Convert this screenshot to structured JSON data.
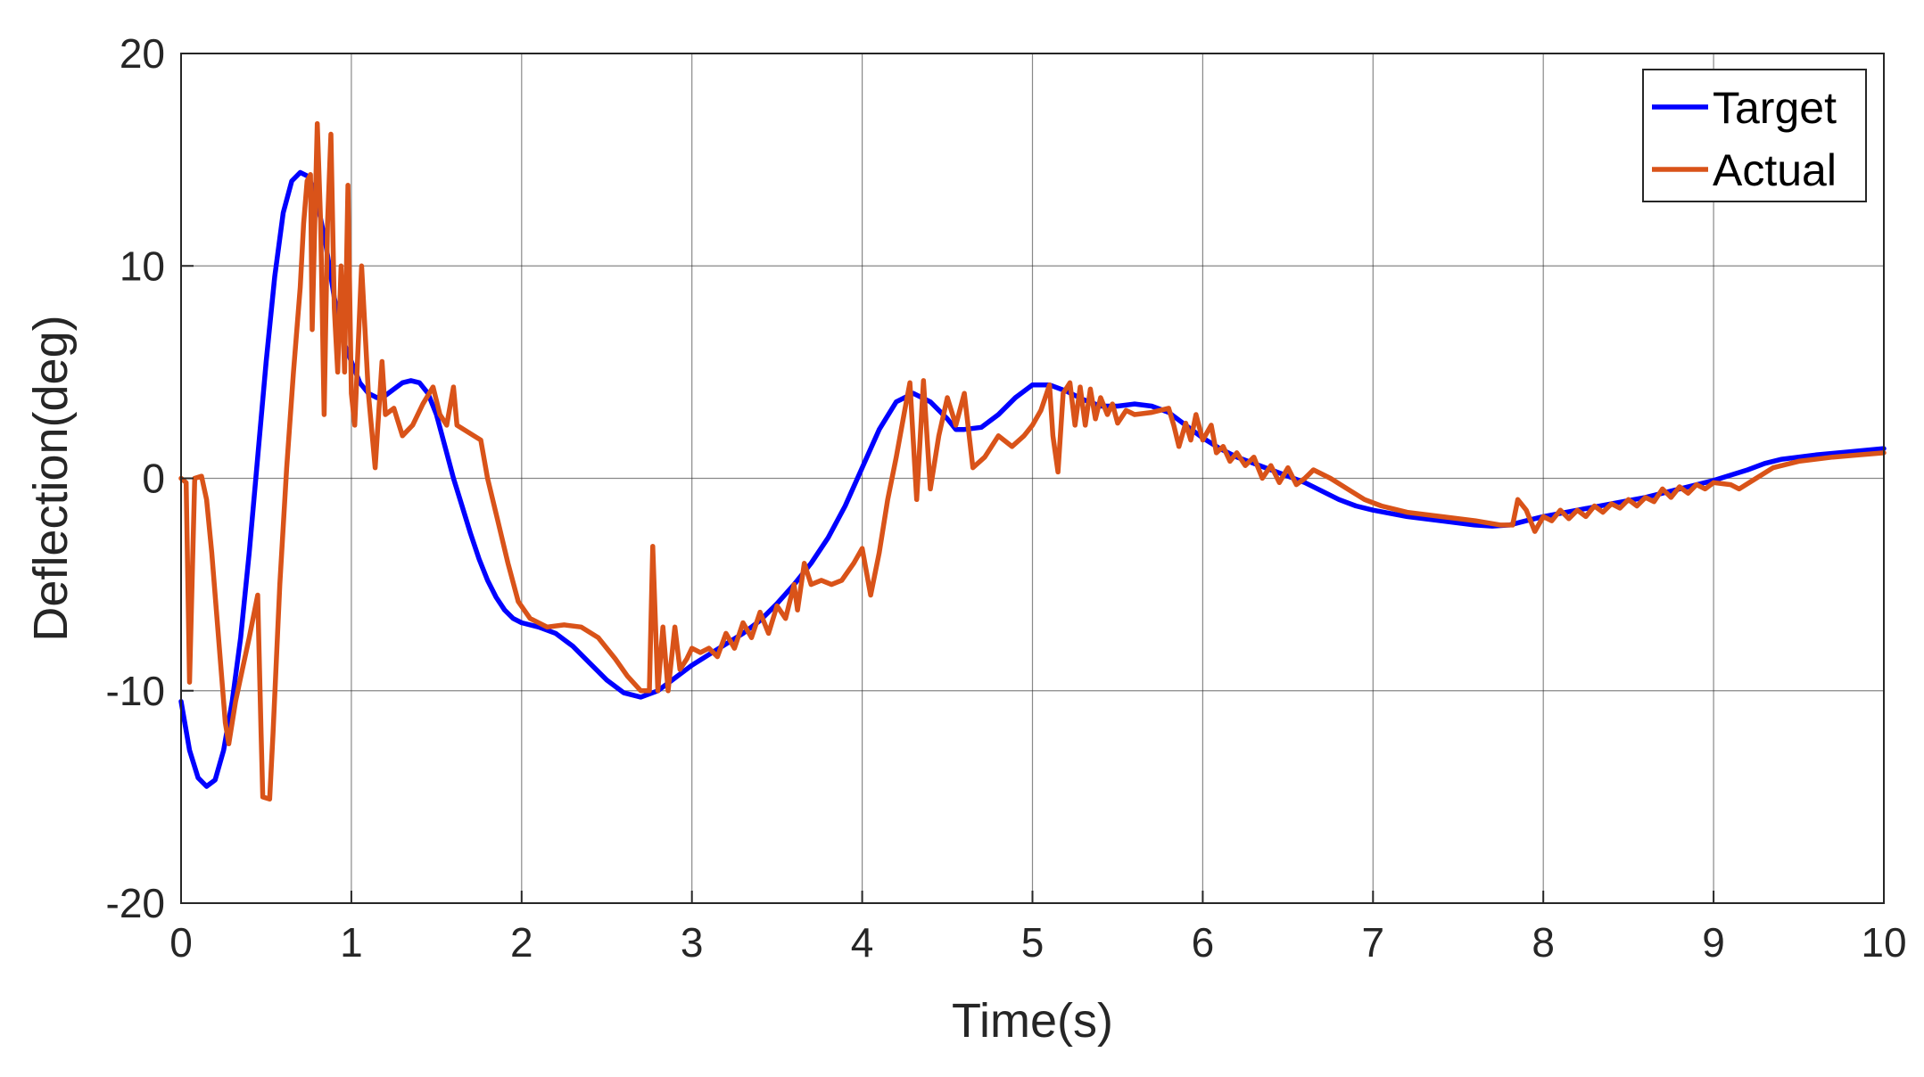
{
  "chart_data": {
    "type": "line",
    "title": "",
    "xlabel": "Time(s)",
    "ylabel": "Deflection(deg)",
    "xlim": [
      0,
      10
    ],
    "ylim": [
      -20,
      20
    ],
    "xticks": [
      0,
      1,
      2,
      3,
      4,
      5,
      6,
      7,
      8,
      9,
      10
    ],
    "yticks": [
      -20,
      -10,
      0,
      10,
      20
    ],
    "grid": true,
    "legend_position": "top-right",
    "series": [
      {
        "name": "Target",
        "color": "#0000ff",
        "points": [
          [
            0,
            -10.5
          ],
          [
            0.05,
            -12.8
          ],
          [
            0.1,
            -14.1
          ],
          [
            0.15,
            -14.5
          ],
          [
            0.2,
            -14.2
          ],
          [
            0.25,
            -12.8
          ],
          [
            0.3,
            -10.5
          ],
          [
            0.35,
            -7.5
          ],
          [
            0.4,
            -3.5
          ],
          [
            0.45,
            1.0
          ],
          [
            0.5,
            5.5
          ],
          [
            0.55,
            9.5
          ],
          [
            0.6,
            12.5
          ],
          [
            0.65,
            14.0
          ],
          [
            0.7,
            14.4
          ],
          [
            0.75,
            14.2
          ],
          [
            0.8,
            13.0
          ],
          [
            0.85,
            11.0
          ],
          [
            0.9,
            8.5
          ],
          [
            0.95,
            6.5
          ],
          [
            1.0,
            5.5
          ],
          [
            1.05,
            4.5
          ],
          [
            1.1,
            4.0
          ],
          [
            1.15,
            3.8
          ],
          [
            1.2,
            3.9
          ],
          [
            1.25,
            4.2
          ],
          [
            1.3,
            4.5
          ],
          [
            1.35,
            4.6
          ],
          [
            1.4,
            4.5
          ],
          [
            1.45,
            4.0
          ],
          [
            1.5,
            3.0
          ],
          [
            1.55,
            1.5
          ],
          [
            1.6,
            0.0
          ],
          [
            1.65,
            -1.3
          ],
          [
            1.7,
            -2.6
          ],
          [
            1.75,
            -3.8
          ],
          [
            1.8,
            -4.8
          ],
          [
            1.85,
            -5.6
          ],
          [
            1.9,
            -6.2
          ],
          [
            1.95,
            -6.6
          ],
          [
            2.0,
            -6.8
          ],
          [
            2.1,
            -7.0
          ],
          [
            2.2,
            -7.3
          ],
          [
            2.3,
            -7.9
          ],
          [
            2.4,
            -8.7
          ],
          [
            2.5,
            -9.5
          ],
          [
            2.6,
            -10.1
          ],
          [
            2.7,
            -10.3
          ],
          [
            2.8,
            -10.0
          ],
          [
            2.9,
            -9.4
          ],
          [
            3.0,
            -8.8
          ],
          [
            3.1,
            -8.3
          ],
          [
            3.2,
            -7.8
          ],
          [
            3.3,
            -7.3
          ],
          [
            3.4,
            -6.7
          ],
          [
            3.5,
            -5.9
          ],
          [
            3.6,
            -5.0
          ],
          [
            3.7,
            -4.0
          ],
          [
            3.8,
            -2.8
          ],
          [
            3.9,
            -1.3
          ],
          [
            4.0,
            0.5
          ],
          [
            4.1,
            2.3
          ],
          [
            4.2,
            3.6
          ],
          [
            4.3,
            4.0
          ],
          [
            4.4,
            3.6
          ],
          [
            4.5,
            2.8
          ],
          [
            4.55,
            2.3
          ],
          [
            4.6,
            2.3
          ],
          [
            4.7,
            2.4
          ],
          [
            4.8,
            3.0
          ],
          [
            4.9,
            3.8
          ],
          [
            5.0,
            4.4
          ],
          [
            5.1,
            4.4
          ],
          [
            5.2,
            4.1
          ],
          [
            5.3,
            3.7
          ],
          [
            5.4,
            3.4
          ],
          [
            5.5,
            3.4
          ],
          [
            5.6,
            3.5
          ],
          [
            5.7,
            3.4
          ],
          [
            5.8,
            3.1
          ],
          [
            5.9,
            2.5
          ],
          [
            6.0,
            1.9
          ],
          [
            6.1,
            1.4
          ],
          [
            6.2,
            1.0
          ],
          [
            6.3,
            0.7
          ],
          [
            6.4,
            0.4
          ],
          [
            6.5,
            0.1
          ],
          [
            6.6,
            -0.2
          ],
          [
            6.7,
            -0.6
          ],
          [
            6.8,
            -1.0
          ],
          [
            6.9,
            -1.3
          ],
          [
            7.0,
            -1.5
          ],
          [
            7.2,
            -1.8
          ],
          [
            7.4,
            -2.0
          ],
          [
            7.6,
            -2.2
          ],
          [
            7.7,
            -2.25
          ],
          [
            7.8,
            -2.2
          ],
          [
            7.9,
            -2.0
          ],
          [
            8.0,
            -1.8
          ],
          [
            8.2,
            -1.5
          ],
          [
            8.4,
            -1.2
          ],
          [
            8.6,
            -0.9
          ],
          [
            8.8,
            -0.5
          ],
          [
            9.0,
            -0.1
          ],
          [
            9.2,
            0.4
          ],
          [
            9.3,
            0.7
          ],
          [
            9.4,
            0.9
          ],
          [
            9.5,
            1.0
          ],
          [
            9.6,
            1.1
          ],
          [
            9.8,
            1.25
          ],
          [
            10.0,
            1.4
          ]
        ]
      },
      {
        "name": "Actual",
        "color": "#d95319",
        "points": [
          [
            0,
            0.0
          ],
          [
            0.03,
            -0.2
          ],
          [
            0.05,
            -9.6
          ],
          [
            0.08,
            0.0
          ],
          [
            0.12,
            0.1
          ],
          [
            0.15,
            -1.0
          ],
          [
            0.18,
            -3.5
          ],
          [
            0.21,
            -6.5
          ],
          [
            0.24,
            -9.5
          ],
          [
            0.26,
            -11.5
          ],
          [
            0.28,
            -12.5
          ],
          [
            0.32,
            -10.5
          ],
          [
            0.36,
            -9.0
          ],
          [
            0.4,
            -7.5
          ],
          [
            0.45,
            -5.5
          ],
          [
            0.47,
            -12.0
          ],
          [
            0.48,
            -15.0
          ],
          [
            0.52,
            -15.1
          ],
          [
            0.54,
            -12.0
          ],
          [
            0.58,
            -5.0
          ],
          [
            0.62,
            0.5
          ],
          [
            0.66,
            5.0
          ],
          [
            0.7,
            9.0
          ],
          [
            0.72,
            12.0
          ],
          [
            0.74,
            14.0
          ],
          [
            0.76,
            14.3
          ],
          [
            0.77,
            7.0
          ],
          [
            0.8,
            16.7
          ],
          [
            0.82,
            12.0
          ],
          [
            0.84,
            3.0
          ],
          [
            0.86,
            12.0
          ],
          [
            0.88,
            16.2
          ],
          [
            0.9,
            8.0
          ],
          [
            0.92,
            5.0
          ],
          [
            0.94,
            10.0
          ],
          [
            0.96,
            5.0
          ],
          [
            0.98,
            13.8
          ],
          [
            1.0,
            4.0
          ],
          [
            1.02,
            2.5
          ],
          [
            1.06,
            10.0
          ],
          [
            1.1,
            4.0
          ],
          [
            1.14,
            0.5
          ],
          [
            1.18,
            5.5
          ],
          [
            1.2,
            3.0
          ],
          [
            1.25,
            3.3
          ],
          [
            1.3,
            2.0
          ],
          [
            1.36,
            2.5
          ],
          [
            1.42,
            3.5
          ],
          [
            1.48,
            4.3
          ],
          [
            1.52,
            3.0
          ],
          [
            1.56,
            2.5
          ],
          [
            1.6,
            4.3
          ],
          [
            1.62,
            2.5
          ],
          [
            1.66,
            2.3
          ],
          [
            1.72,
            2.0
          ],
          [
            1.76,
            1.8
          ],
          [
            1.8,
            0.0
          ],
          [
            1.86,
            -2.0
          ],
          [
            1.92,
            -4.0
          ],
          [
            1.98,
            -5.8
          ],
          [
            2.05,
            -6.6
          ],
          [
            2.15,
            -7.0
          ],
          [
            2.25,
            -6.9
          ],
          [
            2.35,
            -7.0
          ],
          [
            2.45,
            -7.5
          ],
          [
            2.55,
            -8.5
          ],
          [
            2.62,
            -9.3
          ],
          [
            2.7,
            -10.0
          ],
          [
            2.75,
            -10.0
          ],
          [
            2.77,
            -3.2
          ],
          [
            2.8,
            -10.0
          ],
          [
            2.83,
            -7.0
          ],
          [
            2.86,
            -10.0
          ],
          [
            2.9,
            -7.0
          ],
          [
            2.93,
            -9.0
          ],
          [
            2.97,
            -8.5
          ],
          [
            3.0,
            -8.0
          ],
          [
            3.05,
            -8.2
          ],
          [
            3.1,
            -8.0
          ],
          [
            3.15,
            -8.4
          ],
          [
            3.2,
            -7.3
          ],
          [
            3.25,
            -8.0
          ],
          [
            3.3,
            -6.8
          ],
          [
            3.35,
            -7.5
          ],
          [
            3.4,
            -6.3
          ],
          [
            3.45,
            -7.3
          ],
          [
            3.5,
            -6.0
          ],
          [
            3.55,
            -6.6
          ],
          [
            3.6,
            -5.0
          ],
          [
            3.62,
            -6.2
          ],
          [
            3.66,
            -4.0
          ],
          [
            3.7,
            -5.0
          ],
          [
            3.76,
            -4.8
          ],
          [
            3.82,
            -5.0
          ],
          [
            3.88,
            -4.8
          ],
          [
            3.95,
            -4.0
          ],
          [
            4.0,
            -3.3
          ],
          [
            4.05,
            -5.5
          ],
          [
            4.1,
            -3.5
          ],
          [
            4.15,
            -1.0
          ],
          [
            4.2,
            1.0
          ],
          [
            4.25,
            3.2
          ],
          [
            4.28,
            4.5
          ],
          [
            4.32,
            -1.0
          ],
          [
            4.36,
            4.6
          ],
          [
            4.4,
            -0.5
          ],
          [
            4.45,
            2.0
          ],
          [
            4.5,
            3.8
          ],
          [
            4.55,
            2.5
          ],
          [
            4.6,
            4.0
          ],
          [
            4.65,
            0.5
          ],
          [
            4.72,
            1.0
          ],
          [
            4.8,
            2.0
          ],
          [
            4.88,
            1.5
          ],
          [
            4.95,
            2.0
          ],
          [
            5.0,
            2.5
          ],
          [
            5.05,
            3.2
          ],
          [
            5.1,
            4.4
          ],
          [
            5.12,
            2.0
          ],
          [
            5.15,
            0.3
          ],
          [
            5.18,
            4.0
          ],
          [
            5.22,
            4.5
          ],
          [
            5.25,
            2.5
          ],
          [
            5.28,
            4.3
          ],
          [
            5.31,
            2.5
          ],
          [
            5.34,
            4.2
          ],
          [
            5.37,
            2.8
          ],
          [
            5.4,
            3.8
          ],
          [
            5.44,
            3.0
          ],
          [
            5.47,
            3.5
          ],
          [
            5.5,
            2.6
          ],
          [
            5.55,
            3.2
          ],
          [
            5.6,
            3.0
          ],
          [
            5.7,
            3.1
          ],
          [
            5.8,
            3.3
          ],
          [
            5.83,
            2.5
          ],
          [
            5.86,
            1.5
          ],
          [
            5.9,
            2.6
          ],
          [
            5.93,
            1.8
          ],
          [
            5.96,
            3.0
          ],
          [
            6.0,
            1.8
          ],
          [
            6.05,
            2.5
          ],
          [
            6.08,
            1.2
          ],
          [
            6.12,
            1.5
          ],
          [
            6.16,
            0.8
          ],
          [
            6.2,
            1.2
          ],
          [
            6.25,
            0.6
          ],
          [
            6.3,
            1.0
          ],
          [
            6.35,
            0.0
          ],
          [
            6.4,
            0.6
          ],
          [
            6.45,
            -0.2
          ],
          [
            6.5,
            0.5
          ],
          [
            6.55,
            -0.3
          ],
          [
            6.6,
            0.0
          ],
          [
            6.65,
            0.4
          ],
          [
            6.75,
            0.0
          ],
          [
            6.85,
            -0.5
          ],
          [
            6.95,
            -1.0
          ],
          [
            7.05,
            -1.3
          ],
          [
            7.2,
            -1.6
          ],
          [
            7.4,
            -1.8
          ],
          [
            7.6,
            -2.0
          ],
          [
            7.75,
            -2.2
          ],
          [
            7.82,
            -2.2
          ],
          [
            7.85,
            -1.0
          ],
          [
            7.9,
            -1.5
          ],
          [
            7.95,
            -2.5
          ],
          [
            8.0,
            -1.8
          ],
          [
            8.05,
            -2.0
          ],
          [
            8.1,
            -1.5
          ],
          [
            8.15,
            -1.9
          ],
          [
            8.2,
            -1.5
          ],
          [
            8.25,
            -1.8
          ],
          [
            8.3,
            -1.3
          ],
          [
            8.35,
            -1.6
          ],
          [
            8.4,
            -1.2
          ],
          [
            8.45,
            -1.4
          ],
          [
            8.5,
            -1.0
          ],
          [
            8.55,
            -1.3
          ],
          [
            8.6,
            -0.9
          ],
          [
            8.65,
            -1.1
          ],
          [
            8.7,
            -0.5
          ],
          [
            8.75,
            -0.9
          ],
          [
            8.8,
            -0.4
          ],
          [
            8.85,
            -0.7
          ],
          [
            8.9,
            -0.3
          ],
          [
            8.95,
            -0.5
          ],
          [
            9.0,
            -0.2
          ],
          [
            9.1,
            -0.3
          ],
          [
            9.15,
            -0.5
          ],
          [
            9.25,
            0.0
          ],
          [
            9.35,
            0.5
          ],
          [
            9.5,
            0.8
          ],
          [
            9.7,
            1.0
          ],
          [
            9.85,
            1.1
          ],
          [
            10.0,
            1.2
          ]
        ]
      }
    ]
  }
}
